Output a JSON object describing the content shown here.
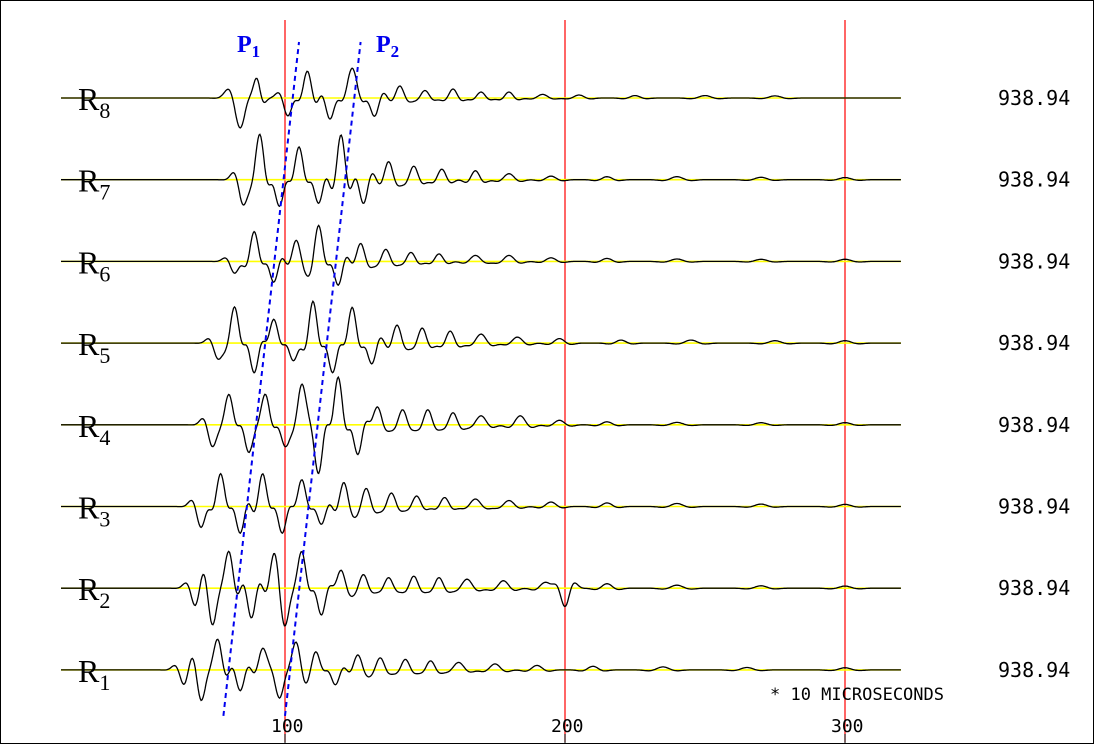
{
  "chart_data": {
    "type": "line",
    "x_unit_note": "* 10 MICROSECONDS",
    "xlim": [
      -105,
      350
    ],
    "x_ticks": [
      {
        "value": 100,
        "label": "100"
      },
      {
        "value": 200,
        "label": "200"
      },
      {
        "value": 300,
        "label": "300"
      }
    ],
    "vertical_markers": [
      100,
      200,
      300
    ],
    "baseline_color": "#ffff00",
    "marker_color": "#ff0000",
    "trace_color": "#000000",
    "pick_color": "#0000ee",
    "trace_start": 20,
    "trace_end": 320,
    "preview_start": -102,
    "preview_end": -86,
    "series": [
      {
        "sub": "8",
        "value_label": "938.94",
        "waves": [
          [
            84,
            -1.0,
            5
          ],
          [
            90,
            0.5,
            3
          ],
          [
            101,
            -0.6,
            4
          ],
          [
            108,
            0.9,
            4
          ],
          [
            116,
            -0.7,
            4
          ],
          [
            124,
            1.0,
            5
          ],
          [
            132,
            -0.6,
            4
          ],
          [
            141,
            0.4,
            4
          ],
          [
            150,
            0.25,
            4
          ],
          [
            160,
            0.3,
            4
          ],
          [
            170,
            0.2,
            4
          ],
          [
            180,
            0.2,
            4
          ],
          [
            192,
            0.12,
            5
          ],
          [
            205,
            0.1,
            5
          ],
          [
            225,
            0.08,
            5
          ],
          [
            250,
            0.08,
            6
          ],
          [
            275,
            0.07,
            6
          ]
        ],
        "preview": [
          [
            -94,
            0.35,
            3
          ]
        ]
      },
      {
        "sub": "7",
        "value_label": "938.94",
        "waves": [
          [
            85,
            -0.8,
            4
          ],
          [
            91,
            1.5,
            4
          ],
          [
            98,
            -0.9,
            4
          ],
          [
            105,
            1.1,
            4
          ],
          [
            112,
            -0.8,
            4
          ],
          [
            120,
            1.5,
            4
          ],
          [
            128,
            -0.8,
            4
          ],
          [
            137,
            0.6,
            4
          ],
          [
            146,
            0.45,
            4
          ],
          [
            156,
            0.35,
            4
          ],
          [
            168,
            0.3,
            4
          ],
          [
            180,
            0.2,
            5
          ],
          [
            195,
            0.12,
            5
          ],
          [
            215,
            0.1,
            5
          ],
          [
            240,
            0.1,
            6
          ],
          [
            270,
            0.08,
            6
          ],
          [
            300,
            0.07,
            6
          ]
        ],
        "preview": [
          [
            -94,
            -0.3,
            3
          ]
        ]
      },
      {
        "sub": "6",
        "value_label": "938.94",
        "waves": [
          [
            82,
            -0.4,
            4
          ],
          [
            89,
            1.0,
            4
          ],
          [
            96,
            -0.7,
            4
          ],
          [
            104,
            0.7,
            4
          ],
          [
            112,
            1.2,
            4
          ],
          [
            119,
            -0.8,
            4
          ],
          [
            127,
            0.6,
            4
          ],
          [
            136,
            0.4,
            4
          ],
          [
            145,
            0.3,
            4
          ],
          [
            155,
            0.25,
            4
          ],
          [
            168,
            0.2,
            5
          ],
          [
            180,
            0.2,
            5
          ],
          [
            195,
            0.12,
            5
          ],
          [
            215,
            0.1,
            5
          ],
          [
            240,
            0.08,
            6
          ],
          [
            270,
            0.07,
            6
          ],
          [
            300,
            0.07,
            6
          ]
        ],
        "preview": [
          [
            -94,
            0.6,
            3
          ]
        ]
      },
      {
        "sub": "5",
        "value_label": "938.94",
        "waves": [
          [
            76,
            -0.5,
            4
          ],
          [
            82,
            1.2,
            4
          ],
          [
            89,
            -1.0,
            4
          ],
          [
            96,
            0.8,
            4
          ],
          [
            103,
            -0.6,
            4
          ],
          [
            110,
            1.4,
            4
          ],
          [
            117,
            -1.0,
            4
          ],
          [
            124,
            1.2,
            4
          ],
          [
            131,
            -0.7,
            4
          ],
          [
            140,
            0.6,
            4
          ],
          [
            149,
            0.5,
            4
          ],
          [
            159,
            0.4,
            4
          ],
          [
            170,
            0.3,
            5
          ],
          [
            183,
            0.2,
            5
          ],
          [
            198,
            0.15,
            5
          ],
          [
            220,
            0.1,
            5
          ],
          [
            245,
            0.1,
            6
          ],
          [
            275,
            0.08,
            6
          ],
          [
            300,
            0.08,
            6
          ]
        ],
        "preview": [
          [
            -94,
            0.25,
            3
          ]
        ]
      },
      {
        "sub": "4",
        "value_label": "938.94",
        "waves": [
          [
            74,
            -0.7,
            4
          ],
          [
            80,
            1.0,
            4
          ],
          [
            87,
            -0.9,
            4
          ],
          [
            93,
            1.0,
            4
          ],
          [
            100,
            -0.7,
            4
          ],
          [
            106,
            1.3,
            4
          ],
          [
            112,
            -1.6,
            4
          ],
          [
            119,
            1.6,
            4
          ],
          [
            126,
            -1.0,
            4
          ],
          [
            133,
            0.6,
            4
          ],
          [
            142,
            0.5,
            4
          ],
          [
            151,
            0.5,
            4
          ],
          [
            160,
            0.4,
            4
          ],
          [
            170,
            0.3,
            5
          ],
          [
            184,
            0.3,
            5
          ],
          [
            198,
            0.15,
            5
          ],
          [
            215,
            0.1,
            5
          ],
          [
            240,
            0.08,
            6
          ],
          [
            270,
            0.07,
            6
          ],
          [
            300,
            0.07,
            6
          ]
        ],
        "preview": [
          [
            -94,
            -0.3,
            3
          ]
        ]
      },
      {
        "sub": "3",
        "value_label": "938.94",
        "waves": [
          [
            70,
            -0.7,
            4
          ],
          [
            77,
            1.1,
            4
          ],
          [
            84,
            -0.9,
            4
          ],
          [
            92,
            1.1,
            4
          ],
          [
            99,
            -0.9,
            4
          ],
          [
            106,
            0.9,
            4
          ],
          [
            113,
            -0.6,
            4
          ],
          [
            121,
            0.8,
            4
          ],
          [
            129,
            0.6,
            4
          ],
          [
            138,
            0.45,
            4
          ],
          [
            147,
            0.35,
            4
          ],
          [
            157,
            0.3,
            4
          ],
          [
            168,
            0.25,
            5
          ],
          [
            180,
            0.2,
            5
          ],
          [
            195,
            0.15,
            5
          ],
          [
            215,
            0.12,
            5
          ],
          [
            240,
            0.1,
            6
          ],
          [
            270,
            0.08,
            6
          ],
          [
            300,
            0.07,
            6
          ]
        ],
        "preview": [
          [
            -94,
            0.3,
            3
          ]
        ]
      },
      {
        "sub": "2",
        "value_label": "938.94",
        "waves": [
          [
            68,
            -0.6,
            4
          ],
          [
            74,
            -1.2,
            4
          ],
          [
            80,
            1.2,
            4
          ],
          [
            88,
            -1.0,
            4
          ],
          [
            96,
            0.9,
            4
          ],
          [
            100,
            -1.0,
            4
          ],
          [
            106,
            1.2,
            4
          ],
          [
            113,
            -0.9,
            4
          ],
          [
            120,
            0.6,
            4
          ],
          [
            128,
            0.45,
            4
          ],
          [
            137,
            0.35,
            4
          ],
          [
            146,
            0.4,
            4
          ],
          [
            155,
            0.35,
            4
          ],
          [
            165,
            0.3,
            5
          ],
          [
            178,
            0.25,
            5
          ],
          [
            193,
            0.2,
            5
          ],
          [
            200,
            -0.6,
            4
          ],
          [
            215,
            0.15,
            5
          ],
          [
            240,
            0.1,
            6
          ],
          [
            270,
            0.08,
            6
          ],
          [
            300,
            0.07,
            6
          ]
        ],
        "preview": [
          [
            -94,
            0.25,
            3
          ]
        ]
      },
      {
        "sub": "1",
        "value_label": "938.94",
        "waves": [
          [
            64,
            -0.5,
            4
          ],
          [
            70,
            -1.0,
            4
          ],
          [
            76,
            1.0,
            4
          ],
          [
            84,
            -0.7,
            4
          ],
          [
            92,
            0.7,
            4
          ],
          [
            98,
            -0.9,
            4
          ],
          [
            104,
            0.9,
            4
          ],
          [
            111,
            0.6,
            4
          ],
          [
            118,
            -0.5,
            4
          ],
          [
            126,
            0.5,
            4
          ],
          [
            134,
            0.4,
            4
          ],
          [
            143,
            0.35,
            4
          ],
          [
            152,
            0.3,
            4
          ],
          [
            162,
            0.25,
            5
          ],
          [
            175,
            0.2,
            5
          ],
          [
            190,
            0.15,
            5
          ],
          [
            210,
            0.12,
            5
          ],
          [
            235,
            0.1,
            6
          ],
          [
            265,
            0.08,
            6
          ],
          [
            300,
            0.07,
            6
          ]
        ],
        "preview": [
          [
            -96,
            -0.6,
            2
          ],
          [
            -90,
            0.5,
            2
          ]
        ]
      }
    ],
    "picks": [
      {
        "label_main": "P",
        "label_sub": "1",
        "x_start": 78,
        "x_end": 105
      },
      {
        "label_main": "P",
        "label_sub": "2",
        "x_start": 100,
        "x_end": 127
      }
    ]
  }
}
